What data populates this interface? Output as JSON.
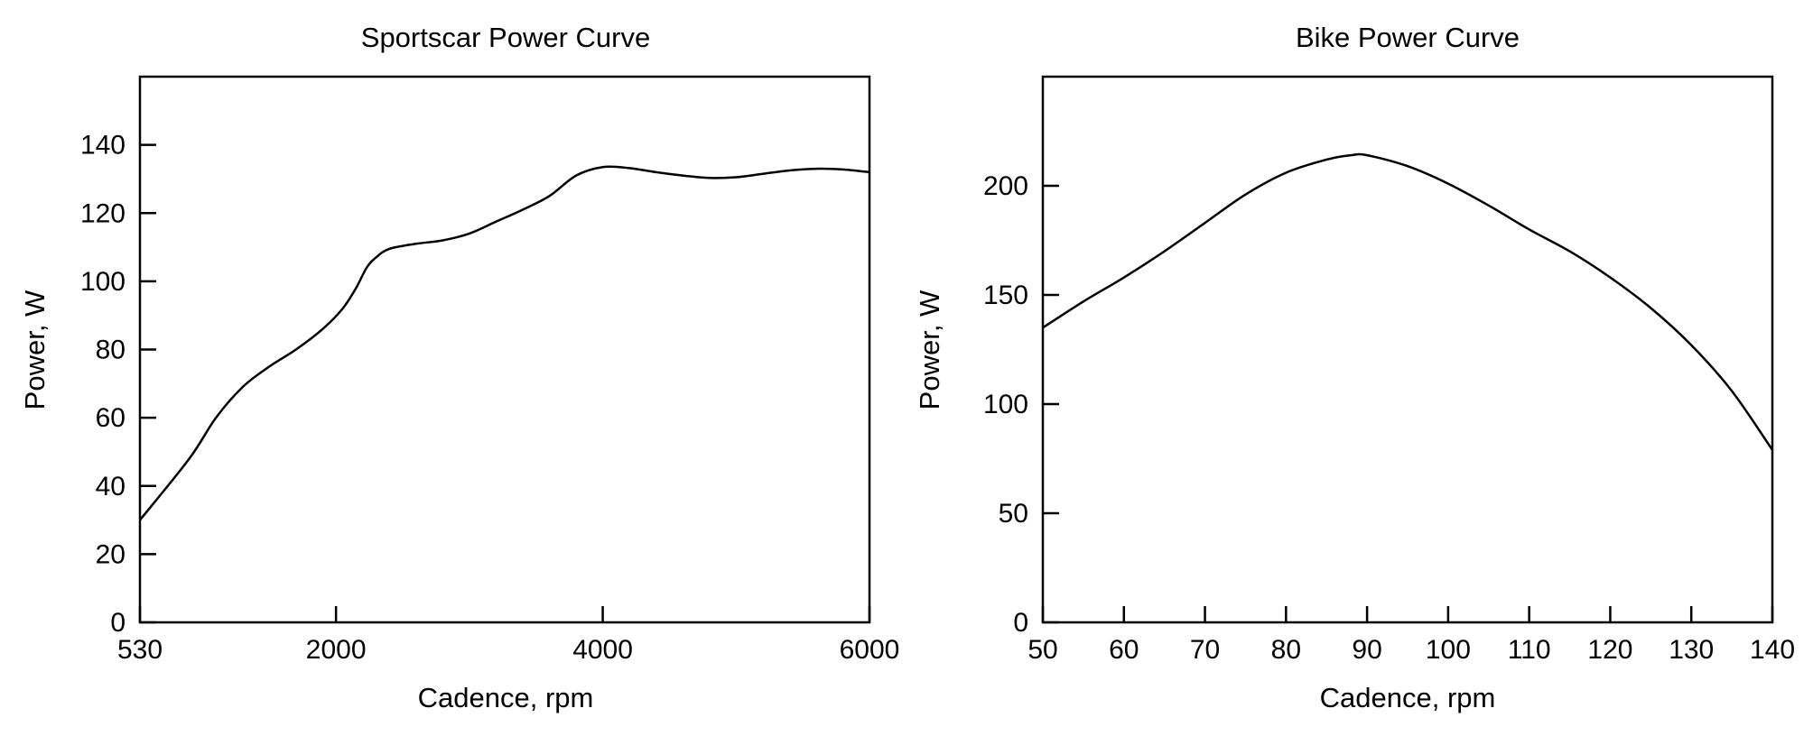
{
  "chart_data": [
    {
      "type": "line",
      "title": "Sportscar Power Curve",
      "xlabel": "Cadence, rpm",
      "ylabel": "Power, W",
      "xlim": [
        530,
        6000
      ],
      "ylim": [
        0,
        160
      ],
      "xticks": [
        530,
        2000,
        4000,
        6000
      ],
      "xtick_labels": [
        "530",
        "2000",
        "4000",
        "6000"
      ],
      "yticks": [
        0,
        20,
        40,
        60,
        80,
        100,
        120,
        140
      ],
      "ytick_labels": [
        "0",
        "20",
        "40",
        "60",
        "80",
        "100",
        "120",
        "140"
      ],
      "grid": false,
      "color": "#000000",
      "series": [
        {
          "x": [
            530,
            900,
            1100,
            1300,
            1500,
            1700,
            1900,
            2050,
            2150,
            2230,
            2300,
            2400,
            2600,
            2800,
            3000,
            3200,
            3400,
            3600,
            3800,
            4000,
            4200,
            4400,
            4600,
            4800,
            5000,
            5200,
            5400,
            5600,
            5800,
            6000
          ],
          "y": [
            30,
            48,
            60,
            69,
            75,
            80,
            86,
            92,
            98,
            104,
            107,
            109.5,
            111,
            112,
            114,
            117.5,
            121,
            125,
            131,
            133.5,
            133.2,
            132,
            131,
            130.3,
            130.5,
            131.5,
            132.5,
            133,
            132.8,
            132
          ]
        }
      ]
    },
    {
      "type": "line",
      "title": "Bike Power Curve",
      "xlabel": "Cadence, rpm",
      "ylabel": "Power, W",
      "xlim": [
        50,
        140
      ],
      "ylim": [
        0,
        250
      ],
      "xticks": [
        50,
        60,
        70,
        80,
        90,
        100,
        110,
        120,
        130,
        140
      ],
      "xtick_labels": [
        "50",
        "60",
        "70",
        "80",
        "90",
        "100",
        "110",
        "120",
        "130",
        "140"
      ],
      "yticks": [
        0,
        50,
        100,
        150,
        200
      ],
      "ytick_labels": [
        "0",
        "50",
        "100",
        "150",
        "200"
      ],
      "grid": false,
      "color": "#000000",
      "series": [
        {
          "x": [
            50,
            55,
            60,
            65,
            70,
            75,
            80,
            85,
            88,
            90,
            95,
            100,
            105,
            110,
            115,
            120,
            125,
            130,
            135,
            140
          ],
          "y": [
            135,
            147,
            158,
            170,
            183,
            196,
            206,
            212,
            214,
            214,
            209,
            201,
            191,
            180,
            170,
            158,
            144,
            127,
            106,
            79
          ]
        }
      ]
    }
  ]
}
